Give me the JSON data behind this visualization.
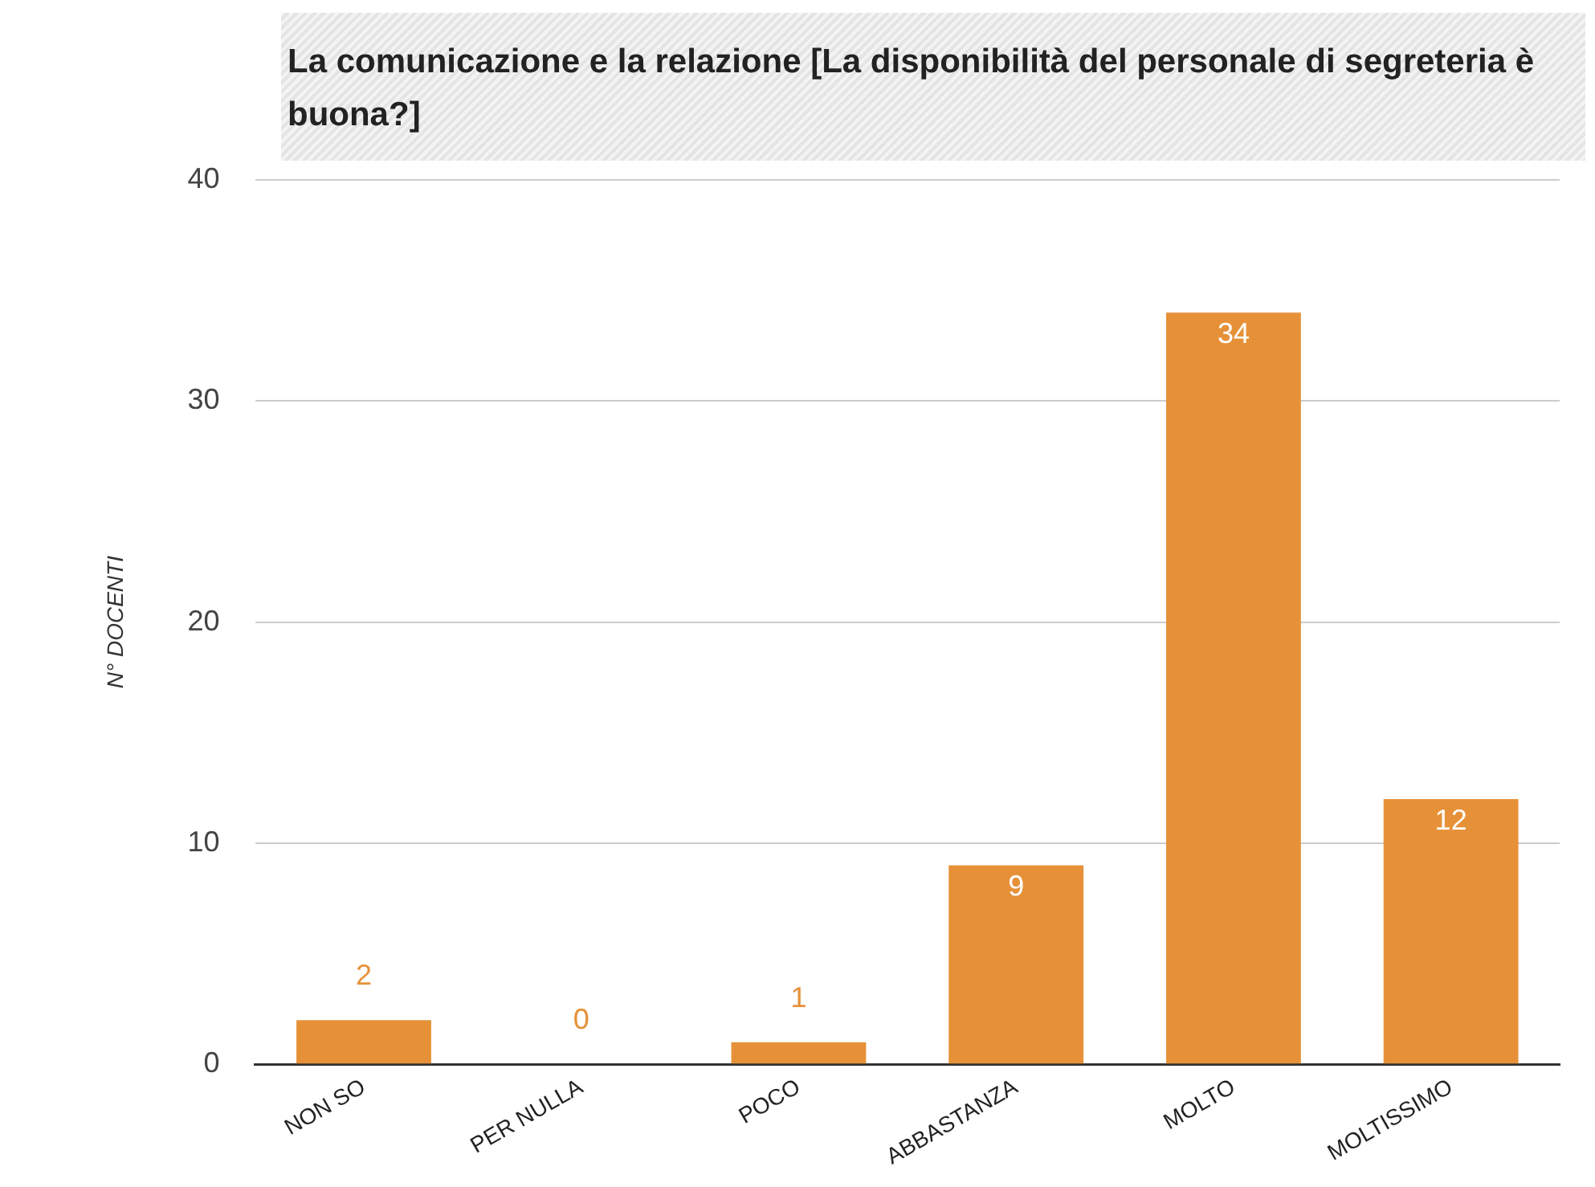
{
  "chart_data": {
    "type": "bar",
    "title": "La comunicazione e la relazione [La disponibilità del personale di segreteria è buona?]",
    "ylabel": "N° DOCENTI",
    "categories": [
      "NON SO",
      "PER NULLA",
      "POCO",
      "ABBASTANZA",
      "MOLTO",
      "MOLTISSIMO"
    ],
    "values": [
      2,
      0,
      1,
      9,
      34,
      12
    ],
    "color": "#e69138",
    "ylim": [
      0,
      40
    ],
    "yticks": [
      0,
      10,
      20,
      30,
      40
    ],
    "grid": "y",
    "data_labels": true,
    "legend": false
  }
}
